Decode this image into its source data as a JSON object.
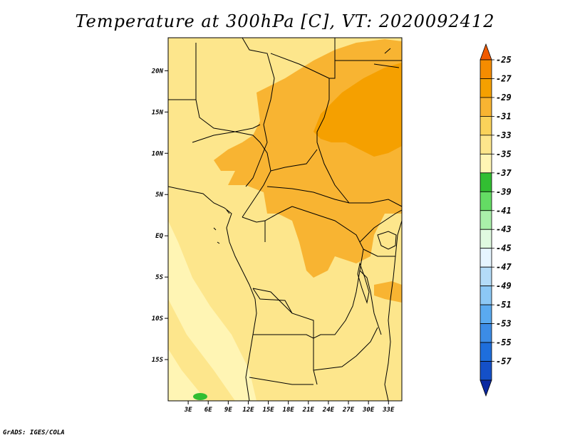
{
  "title": "Temperature at 300hPa [C], VT: 2020092412",
  "credit": "GrADS: IGES/COLA",
  "map": {
    "lon_range": [
      0,
      35
    ],
    "lat_range": [
      -20,
      24
    ],
    "lon_ticks": [
      "3E",
      "6E",
      "9E",
      "12E",
      "15E",
      "18E",
      "21E",
      "24E",
      "27E",
      "30E",
      "33E"
    ],
    "lat_ticks": [
      "20N",
      "15N",
      "10N",
      "5N",
      "EQ",
      "5S",
      "10S",
      "15S"
    ]
  },
  "colorbar": {
    "labels": [
      "-25",
      "-27",
      "-29",
      "-31",
      "-33",
      "-35",
      "-37",
      "-39",
      "-41",
      "-43",
      "-45",
      "-47",
      "-49",
      "-51",
      "-53",
      "-55",
      "-57"
    ],
    "colors": [
      "#f05a00",
      "#f58c00",
      "#f5a000",
      "#f8b432",
      "#fad25a",
      "#fde68c",
      "#fff5b4",
      "#32be32",
      "#64dc64",
      "#aaf0aa",
      "#e0fae0",
      "#e6f5ff",
      "#b4dcf8",
      "#8cc8f5",
      "#5aaaf0",
      "#3c8ce6",
      "#1e6edc",
      "#1450c8",
      "#0a28a0"
    ]
  }
}
